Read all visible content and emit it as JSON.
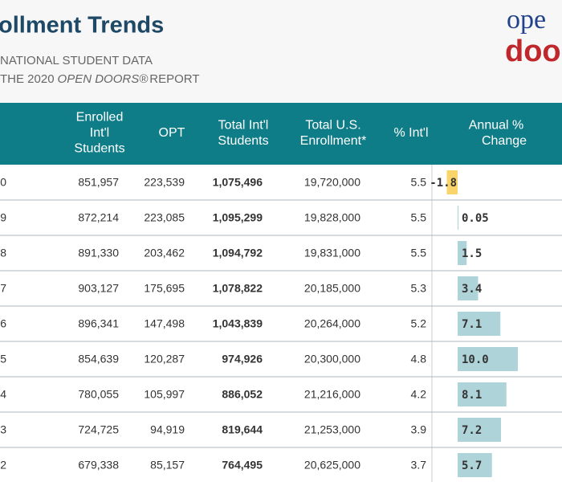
{
  "header": {
    "title": "ollment Trends",
    "subtitle_1": "NATIONAL STUDENT DATA",
    "subtitle_2": [
      "THE 2020",
      "OPEN DOORS®",
      "REPORT"
    ],
    "logo": [
      "ope",
      "doo"
    ]
  },
  "table": {
    "columns": [
      [
        "Enrolled",
        "Int'l",
        "Students"
      ],
      [
        "OPT"
      ],
      [
        "Total Int'l",
        "Students"
      ],
      [
        "Total U.S.",
        "Enrollment*"
      ],
      [
        "% Int'l"
      ],
      [
        "Annual %",
        "Change"
      ]
    ],
    "rows": [
      [
        "0",
        "851,957",
        "223,539",
        "1,075,496",
        "19,720,000",
        "5.5"
      ],
      [
        "9",
        "872,214",
        "223,085",
        "1,095,299",
        "19,828,000",
        "5.5"
      ],
      [
        "8",
        "891,330",
        "203,462",
        "1,094,792",
        "19,831,000",
        "5.5"
      ],
      [
        "7",
        "903,127",
        "175,695",
        "1,078,822",
        "20,185,000",
        "5.3"
      ],
      [
        "6",
        "896,341",
        "147,498",
        "1,043,839",
        "20,264,000",
        "5.2"
      ],
      [
        "5",
        "854,639",
        "120,287",
        "974,926",
        "20,300,000",
        "4.8"
      ],
      [
        "4",
        "780,055",
        "105,997",
        "886,052",
        "21,216,000",
        "4.2"
      ],
      [
        "3",
        "724,725",
        "94,919",
        "819,644",
        "21,253,000",
        "3.9"
      ],
      [
        "2",
        "679,338",
        "85,157",
        "764,495",
        "20,625,000",
        "3.7"
      ]
    ],
    "annual_change": {
      "values": [
        -1.8,
        0.05,
        1.5,
        3.4,
        7.1,
        10.0,
        8.1,
        7.2,
        5.7
      ],
      "value_labels": [
        "-1.8",
        "0.05",
        "1.5",
        "3.4",
        "7.1",
        "10.0",
        "8.1",
        "7.2",
        "5.7"
      ],
      "positive_color": "#aed3d8",
      "negative_color": "#f9d46b"
    }
  }
}
